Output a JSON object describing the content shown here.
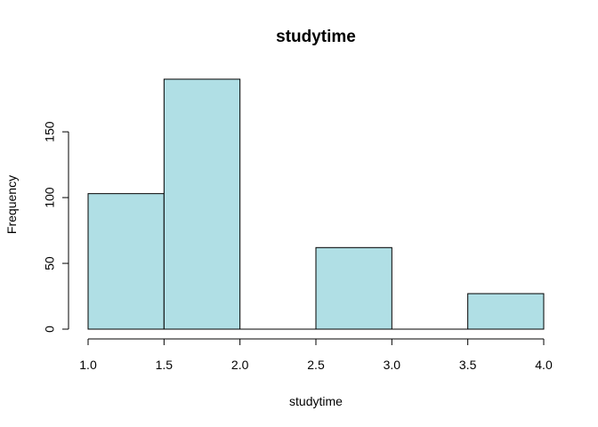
{
  "chart_data": {
    "type": "bar",
    "title": "studytime",
    "xlabel": "studytime",
    "ylabel": "Frequency",
    "bins": [
      {
        "from": 1.0,
        "to": 1.5,
        "value": 103
      },
      {
        "from": 1.5,
        "to": 2.0,
        "value": 190
      },
      {
        "from": 2.0,
        "to": 2.5,
        "value": 0
      },
      {
        "from": 2.5,
        "to": 3.0,
        "value": 62
      },
      {
        "from": 3.0,
        "to": 3.5,
        "value": 0
      },
      {
        "from": 3.5,
        "to": 4.0,
        "value": 27
      }
    ],
    "xlim": [
      1.0,
      4.0
    ],
    "ylim": [
      0,
      190
    ],
    "x_ticks": [
      "1.0",
      "1.5",
      "2.0",
      "2.5",
      "3.0",
      "3.5",
      "4.0"
    ],
    "y_ticks": [
      "0",
      "50",
      "100",
      "150"
    ],
    "bar_color": "#b0dfe5",
    "grid": false,
    "legend": "none"
  }
}
